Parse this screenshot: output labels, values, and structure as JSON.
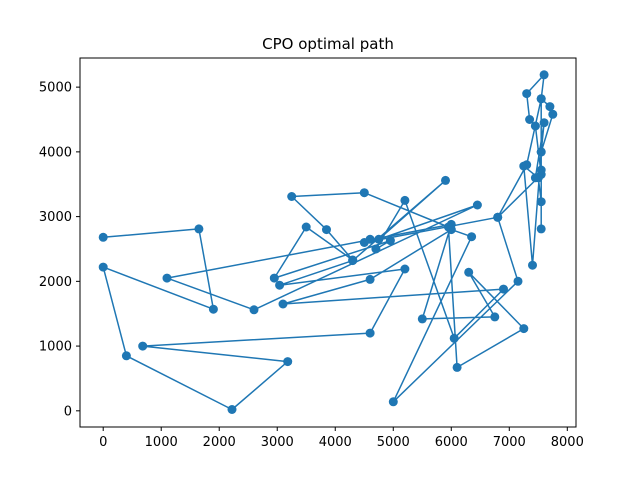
{
  "chart_data": {
    "type": "line",
    "title": "CPO optimal path",
    "xlabel": "",
    "ylabel": "",
    "xlim": [
      -400,
      8150
    ],
    "ylim": [
      -250,
      5450
    ],
    "xticks": [
      0,
      1000,
      2000,
      3000,
      4000,
      5000,
      6000,
      7000,
      8000
    ],
    "yticks": [
      0,
      1000,
      2000,
      3000,
      4000,
      5000
    ],
    "grid": false,
    "legend": "none",
    "series": [
      {
        "color": "#1f77b4",
        "marker": "circle",
        "points": [
          [
            0,
            2680
          ],
          [
            1650,
            2810
          ],
          [
            1900,
            1570
          ],
          [
            0,
            2220
          ],
          [
            400,
            850
          ],
          [
            2220,
            20
          ],
          [
            3180,
            760
          ],
          [
            680,
            1000
          ],
          [
            4600,
            1200
          ],
          [
            5200,
            2190
          ],
          [
            3040,
            1940
          ],
          [
            4300,
            2320
          ],
          [
            5900,
            3560
          ],
          [
            4750,
            2650
          ],
          [
            6450,
            3180
          ],
          [
            2600,
            1560
          ],
          [
            1100,
            2050
          ],
          [
            6000,
            2880
          ],
          [
            5500,
            1420
          ],
          [
            6750,
            1450
          ],
          [
            6300,
            2140
          ],
          [
            7250,
            1270
          ],
          [
            6100,
            670
          ],
          [
            5950,
            2840
          ],
          [
            4500,
            3370
          ],
          [
            3250,
            3310
          ],
          [
            3850,
            2800
          ],
          [
            4300,
            2330
          ],
          [
            3500,
            2840
          ],
          [
            2950,
            2050
          ],
          [
            4950,
            2630
          ],
          [
            4700,
            2500
          ],
          [
            5200,
            3250
          ],
          [
            6050,
            1120
          ],
          [
            6900,
            1880
          ],
          [
            3100,
            1650
          ],
          [
            4600,
            2030
          ],
          [
            6000,
            2800
          ],
          [
            6350,
            2690
          ],
          [
            5000,
            140
          ],
          [
            7150,
            2000
          ],
          [
            6800,
            2990
          ],
          [
            7550,
            3650
          ],
          [
            7450,
            4400
          ],
          [
            7350,
            4500
          ],
          [
            7300,
            4900
          ],
          [
            7600,
            5190
          ],
          [
            7550,
            4820
          ],
          [
            7700,
            4700
          ],
          [
            7750,
            4580
          ],
          [
            7550,
            4000
          ],
          [
            7600,
            4450
          ],
          [
            7450,
            3600
          ],
          [
            7550,
            3720
          ],
          [
            7550,
            4000
          ],
          [
            7400,
            2250
          ],
          [
            7250,
            3780
          ],
          [
            7500,
            3600
          ],
          [
            7550,
            3230
          ],
          [
            7550,
            2810
          ],
          [
            7550,
            4820
          ],
          [
            7300,
            3800
          ],
          [
            6800,
            2990
          ],
          [
            4500,
            2600
          ],
          [
            4600,
            2650
          ]
        ]
      }
    ]
  }
}
